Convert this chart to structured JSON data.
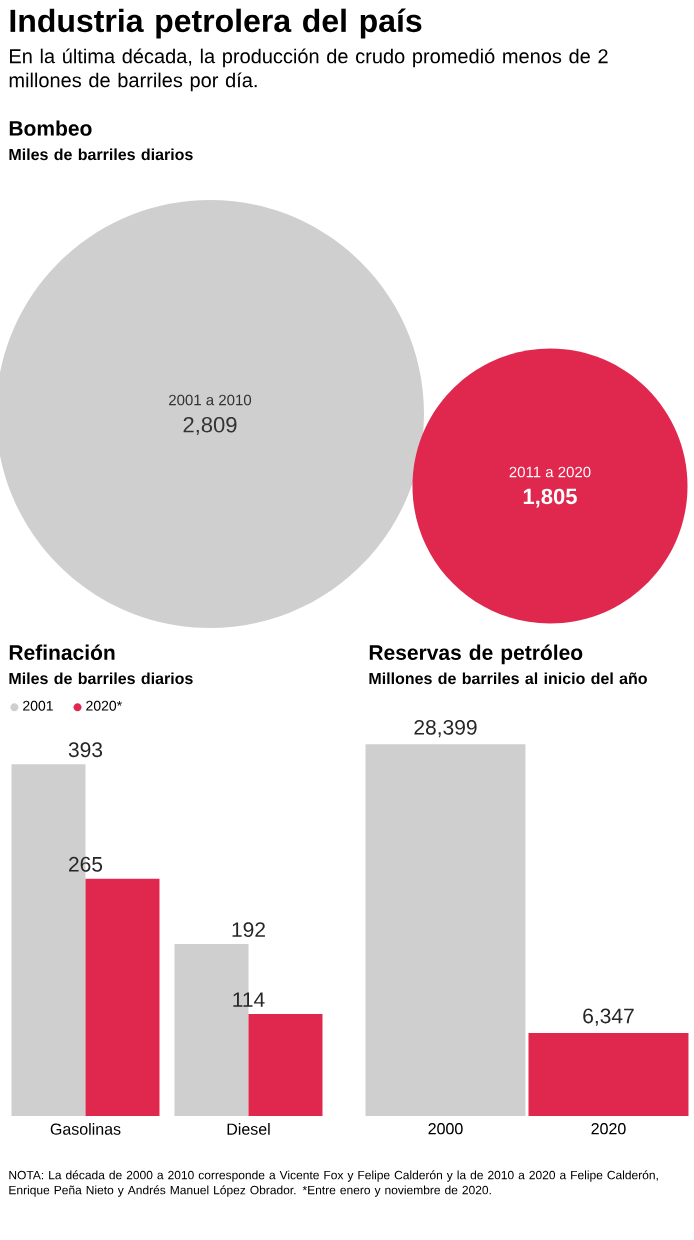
{
  "chart_data": [
    {
      "type": "other",
      "title": "Industria petrolera del país",
      "subtitle": "En la última década, la producción de crudo promedió menos de 2 millones de barriles por día."
    },
    {
      "type": "other",
      "title": "Bombeo",
      "subtitle": "Miles de barriles diarios",
      "categories": [
        "2001 a 2010",
        "2011 a 2020"
      ],
      "values": [
        2809,
        1805
      ],
      "colors": [
        "#cfcfcf",
        "#e0284f"
      ],
      "value_labels": [
        "2,809",
        "1,805"
      ]
    },
    {
      "type": "bar",
      "title": "Refinación",
      "subtitle": "Miles de barriles diarios",
      "categories": [
        "Gasolinas",
        "Diesel"
      ],
      "series": [
        {
          "name": "2001",
          "color": "#cfcfcf",
          "values": [
            393,
            192
          ]
        },
        {
          "name": "2020*",
          "color": "#e0284f",
          "values": [
            265,
            114
          ]
        }
      ],
      "data_labels": true,
      "legend": "top left"
    },
    {
      "type": "bar",
      "title": "Reservas de petróleo",
      "subtitle": "Millones de barriles al inicio del año",
      "categories": [
        "2000",
        "2020"
      ],
      "values": [
        28399,
        6347
      ],
      "colors": [
        "#cfcfcf",
        "#e0284f"
      ],
      "value_labels": [
        "28,399",
        "6,347"
      ],
      "annotations": [
        "NOTA: La década de 2000 a 2010 corresponde a Vicente Fox y Felipe Calderón y la de 2010 a 2020 a Felipe Calderón, Enrique Peña Nieto y Andrés Manuel López Obrador. *Entre enero y noviembre de 2020."
      ]
    }
  ]
}
